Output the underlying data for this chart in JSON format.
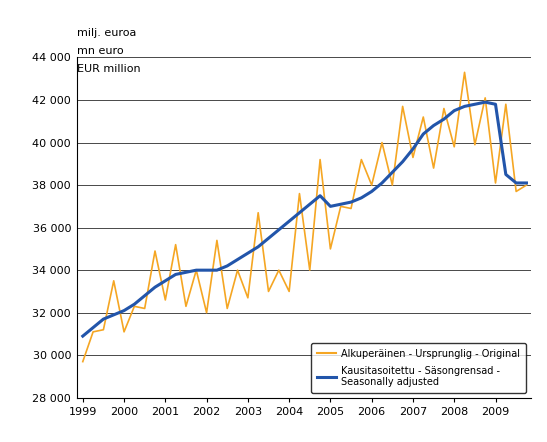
{
  "ylabel_lines": [
    "milj. euroa",
    "mn euro",
    "EUR million"
  ],
  "ylim": [
    28000,
    44000
  ],
  "yticks": [
    28000,
    30000,
    32000,
    34000,
    36000,
    38000,
    40000,
    42000,
    44000
  ],
  "xlim_start": 1998.85,
  "xlim_end": 2009.85,
  "xtick_labels": [
    "1999",
    "2000",
    "2001",
    "2002",
    "2003",
    "2004",
    "2005",
    "2006",
    "2007",
    "2008",
    "2009"
  ],
  "original_color": "#F5A623",
  "adjusted_color": "#2255AA",
  "original_label": "Alkuperäinen - Ursprunglig - Original",
  "adjusted_label": "Kausitasoitettu - Säsongrensad -\nSeasonally adjusted",
  "original_data": [
    29700,
    31100,
    31200,
    33500,
    31100,
    32300,
    32200,
    34900,
    32600,
    35200,
    32300,
    34000,
    32000,
    35400,
    32200,
    34000,
    32700,
    36700,
    33000,
    34000,
    33000,
    37600,
    34000,
    39200,
    35000,
    37000,
    36900,
    39200,
    38000,
    40000,
    38000,
    41700,
    39300,
    41200,
    38800,
    41600,
    39800,
    43300,
    39900,
    42100,
    38100,
    41800,
    37700,
    38000
  ],
  "adjusted_data": [
    30900,
    31300,
    31700,
    31900,
    32100,
    32400,
    32800,
    33200,
    33500,
    33800,
    33900,
    34000,
    34000,
    34000,
    34200,
    34500,
    34800,
    35100,
    35500,
    35900,
    36300,
    36700,
    37100,
    37500,
    37000,
    37100,
    37200,
    37400,
    37700,
    38100,
    38600,
    39100,
    39700,
    40400,
    40800,
    41100,
    41500,
    41700,
    41800,
    41900,
    41800,
    38500,
    38100,
    38100
  ]
}
